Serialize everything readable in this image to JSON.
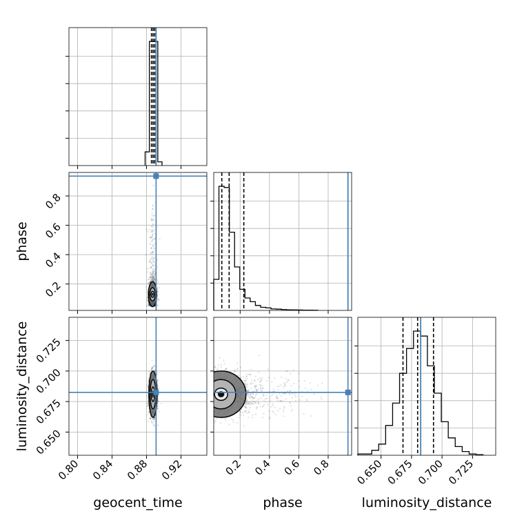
{
  "chart_data": {
    "type": "corner",
    "parameters": [
      {
        "name": "geocent_time",
        "axis_label": "geocent_time",
        "range": [
          0.79,
          0.95
        ],
        "ticks": [
          0.8,
          0.84,
          0.88,
          0.92
        ],
        "tick_labels": [
          "0.80",
          "0.84",
          "0.88",
          "0.92"
        ],
        "true_value": 0.8911,
        "quantiles": [
          0.8857,
          0.8876,
          0.8895
        ]
      },
      {
        "name": "phase",
        "axis_label": "phase",
        "range": [
          0.02,
          0.96
        ],
        "ticks": [
          0.2,
          0.4,
          0.6,
          0.8
        ],
        "tick_labels": [
          "0.2",
          "0.4",
          "0.6",
          "0.8"
        ],
        "true_value": 0.935,
        "quantiles": [
          0.075,
          0.125,
          0.225
        ]
      },
      {
        "name": "luminosity_distance",
        "axis_label": "luminosity_distance",
        "range": [
          0.631,
          0.744
        ],
        "ticks": [
          0.65,
          0.675,
          0.7,
          0.725
        ],
        "tick_labels": [
          "0.650",
          "0.675",
          "0.700",
          "0.725"
        ],
        "true_value": 0.6825,
        "quantiles": [
          0.668,
          0.68,
          0.693
        ]
      }
    ],
    "marginals": {
      "geocent_time": {
        "bin_edges": [
          0.8784,
          0.8833,
          0.8882,
          0.8931,
          0.898
        ],
        "counts": [
          0.11,
          1.0,
          1.0,
          0.03
        ]
      },
      "phase": {
        "bin_edges": [
          0.02,
          0.0555,
          0.091,
          0.1265,
          0.162,
          0.1975,
          0.233,
          0.2685,
          0.304,
          0.3395,
          0.375,
          0.4105,
          0.446,
          0.4815,
          0.517,
          0.5525,
          0.588,
          0.6235,
          0.659,
          0.6945,
          0.73
        ],
        "counts": [
          0.25,
          1.0,
          0.99,
          0.63,
          0.35,
          0.17,
          0.1,
          0.07,
          0.04,
          0.025,
          0.02,
          0.012,
          0.01,
          0.007,
          0.005,
          0.004,
          0.003,
          0.002,
          0.002,
          0.001
        ]
      },
      "luminosity_distance": {
        "bin_edges": [
          0.631,
          0.6367,
          0.6424,
          0.6481,
          0.6538,
          0.6595,
          0.6652,
          0.6709,
          0.6766,
          0.6823,
          0.688,
          0.6937,
          0.6994,
          0.7051,
          0.7108,
          0.7165,
          0.7222,
          0.7279,
          0.7336
        ],
        "counts": [
          0.01,
          0.01,
          0.04,
          0.09,
          0.24,
          0.42,
          0.66,
          0.86,
          1.0,
          0.96,
          0.72,
          0.5,
          0.27,
          0.14,
          0.07,
          0.03,
          0.01,
          0.005
        ]
      }
    },
    "contours": [
      {
        "x": "geocent_time",
        "y": "phase",
        "center": [
          0.887,
          0.13
        ],
        "levels_x": [
          0.0018,
          0.0033,
          0.0048
        ],
        "levels_y": [
          0.02,
          0.045,
          0.085
        ]
      },
      {
        "x": "geocent_time",
        "y": "luminosity_distance",
        "center": [
          0.8875,
          0.681
        ],
        "levels_x": [
          0.0018,
          0.0033,
          0.0048
        ],
        "levels_y": [
          0.006,
          0.012,
          0.019
        ]
      },
      {
        "x": "phase",
        "y": "luminosity_distance",
        "center": [
          0.07,
          0.681
        ],
        "levels_x": [
          0.045,
          0.1,
          0.17
        ],
        "levels_y": [
          0.005,
          0.012,
          0.019
        ]
      }
    ],
    "grid": true,
    "colors": {
      "truth": "#4682b4",
      "histogram": "#000000",
      "points": "#000000",
      "grid": "#b0b0b0"
    }
  }
}
